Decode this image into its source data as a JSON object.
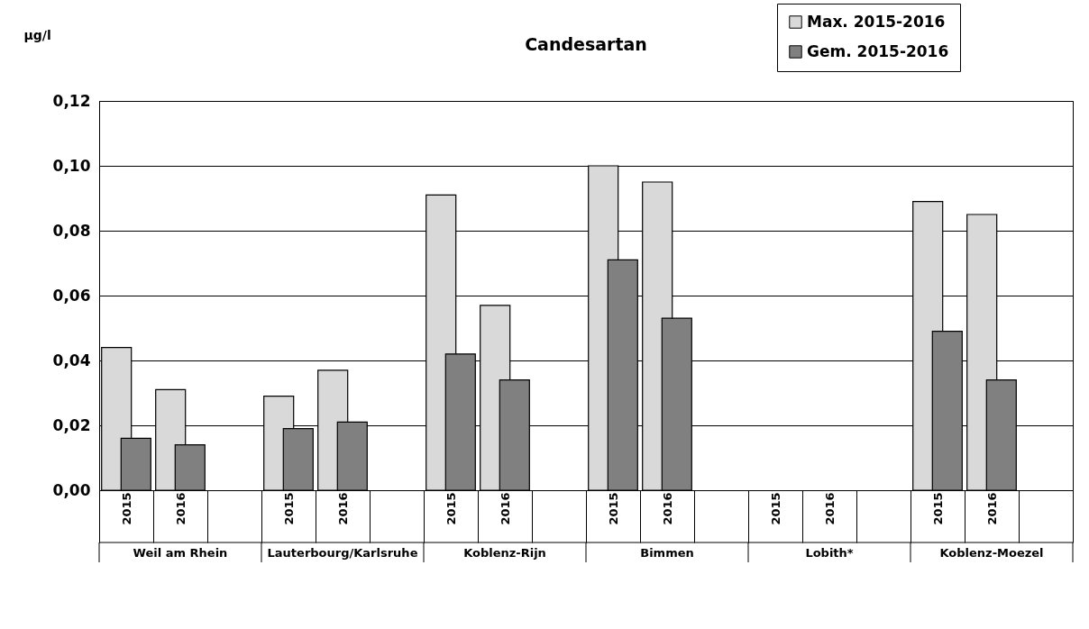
{
  "chart_data": {
    "type": "bar",
    "title": "Candesartan",
    "ylabel": "µg/l",
    "categories": [
      "2015",
      "2016",
      null,
      "2015",
      "2016",
      null,
      "2015",
      "2016",
      null,
      "2015",
      "2016",
      null,
      "2015",
      "2016",
      null,
      "2015",
      "2016",
      null
    ],
    "annotations": [
      "Weil am Rhein",
      "Lauterbourg/Karlsruhe",
      "Koblenz-Rijn",
      "Bimmen",
      "Lobith*",
      "Koblenz-Moezel"
    ],
    "series": [
      {
        "name": "Max. 2015-2016",
        "color": "#d9d9d9",
        "values": [
          0.044,
          0.031,
          null,
          0.029,
          0.037,
          null,
          0.091,
          0.057,
          null,
          0.1,
          0.095,
          null,
          null,
          null,
          null,
          0.089,
          0.085,
          null
        ]
      },
      {
        "name": "Gem. 2015-2016",
        "color": "#808080",
        "values": [
          0.016,
          0.014,
          null,
          0.019,
          0.021,
          null,
          0.042,
          0.034,
          null,
          0.071,
          0.053,
          null,
          null,
          null,
          null,
          0.049,
          0.034,
          null
        ]
      }
    ],
    "ylim": [
      0,
      0.12
    ],
    "yticks": [
      {
        "value": 0,
        "label": "0,00"
      },
      {
        "value": 0.02,
        "label": "0,02"
      },
      {
        "value": 0.04,
        "label": "0,04"
      },
      {
        "value": 0.06,
        "label": "0,06"
      },
      {
        "value": 0.08,
        "label": "0,08"
      },
      {
        "value": 0.1,
        "label": "0,10"
      },
      {
        "value": 0.12,
        "label": "0,12"
      }
    ],
    "grid": "y",
    "legend": "top right"
  }
}
